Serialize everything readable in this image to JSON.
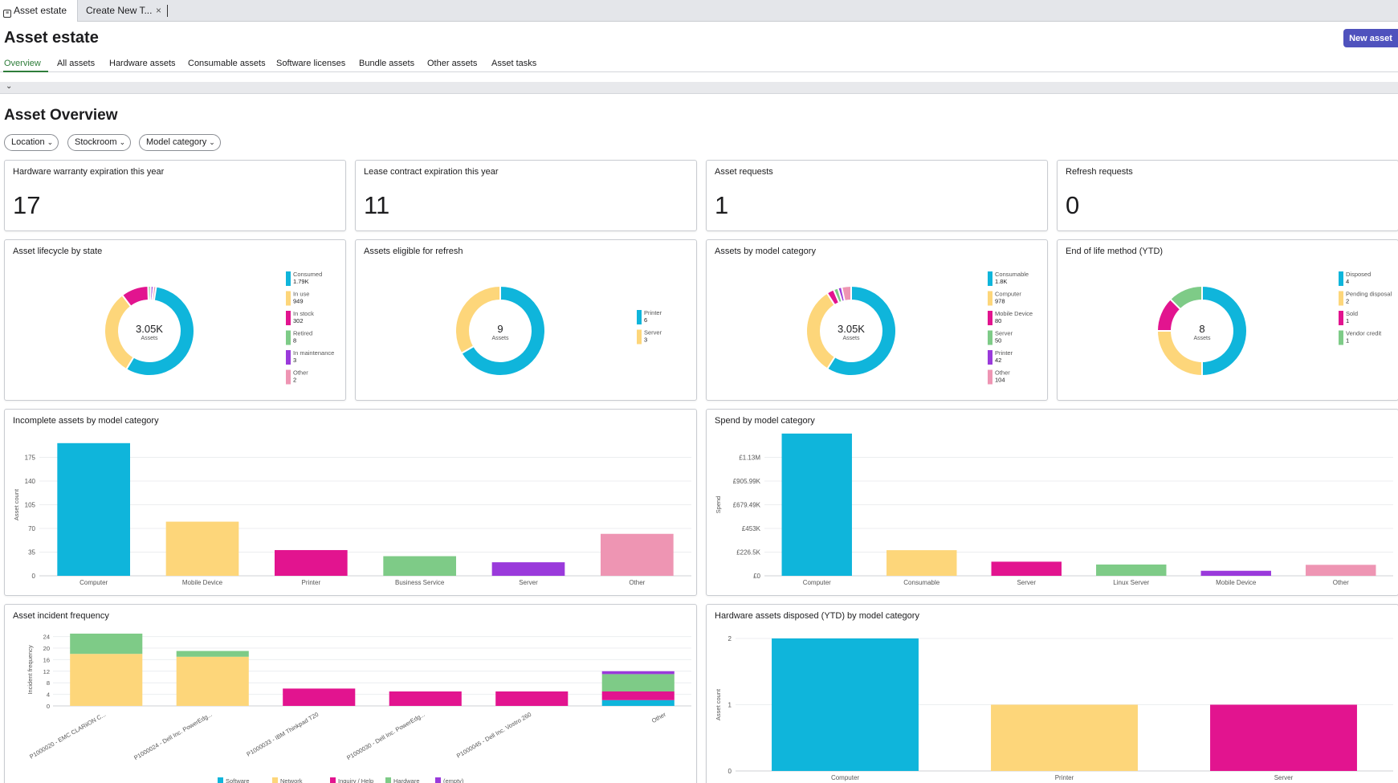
{
  "browser_tabs": [
    {
      "label": "Asset estate",
      "icon": "page-icon"
    },
    {
      "label": "Create New T...",
      "close": "×"
    }
  ],
  "page": {
    "title": "Asset estate",
    "new_asset_label": "New asset"
  },
  "nav_tabs": [
    "Overview",
    "All assets",
    "Hardware assets",
    "Consumable assets",
    "Software licenses",
    "Bundle assets",
    "Other assets",
    "Asset tasks"
  ],
  "active_tab": "Overview",
  "section_title": "Asset Overview",
  "filters": [
    "Location",
    "Stockroom",
    "Model category"
  ],
  "kpis": [
    {
      "label": "Hardware warranty expiration this year",
      "value": "17"
    },
    {
      "label": "Lease contract expiration this year",
      "value": "11"
    },
    {
      "label": "Asset requests",
      "value": "1"
    },
    {
      "label": "Refresh requests",
      "value": "0"
    }
  ],
  "colors": {
    "cyan": "#0fb5db",
    "yellow": "#fdd67a",
    "magenta": "#e2148f",
    "green": "#7ecb87",
    "purple": "#9a3adb",
    "pink": "#ee95b3",
    "accent": "#4f52bd",
    "active_tab": "#2e7d3a"
  },
  "chart_data": [
    {
      "type": "pie",
      "title": "Asset lifecycle by state",
      "center_value": "3.05K",
      "center_label": "Assets",
      "categories": [
        "Consumed",
        "In use",
        "In stock",
        "Retired",
        "In maintenance",
        "Other"
      ],
      "values": [
        1790,
        949,
        302,
        8,
        3,
        2
      ],
      "value_labels": [
        "1.79K",
        "949",
        "302",
        "8",
        "3",
        "2"
      ],
      "colors": [
        "#0fb5db",
        "#fdd67a",
        "#e2148f",
        "#7ecb87",
        "#9a3adb",
        "#ee95b3"
      ],
      "legend": "right"
    },
    {
      "type": "pie",
      "title": "Assets eligible for refresh",
      "center_value": "9",
      "center_label": "Assets",
      "categories": [
        "Printer",
        "Server"
      ],
      "values": [
        6,
        3
      ],
      "value_labels": [
        "6",
        "3"
      ],
      "colors": [
        "#0fb5db",
        "#fdd67a"
      ],
      "legend": "right"
    },
    {
      "type": "pie",
      "title": "Assets by model category",
      "center_value": "3.05K",
      "center_label": "Assets",
      "categories": [
        "Consumable",
        "Computer",
        "Mobile Device",
        "Server",
        "Printer",
        "Other"
      ],
      "values": [
        1800,
        978,
        80,
        50,
        42,
        104
      ],
      "value_labels": [
        "1.8K",
        "978",
        "80",
        "50",
        "42",
        "104"
      ],
      "colors": [
        "#0fb5db",
        "#fdd67a",
        "#e2148f",
        "#7ecb87",
        "#9a3adb",
        "#ee95b3"
      ],
      "legend": "right"
    },
    {
      "type": "pie",
      "title": "End of life method (YTD)",
      "center_value": "8",
      "center_label": "Assets",
      "categories": [
        "Disposed",
        "Pending disposal",
        "Sold",
        "Vendor credit"
      ],
      "values": [
        4,
        2,
        1,
        1
      ],
      "value_labels": [
        "4",
        "2",
        "1",
        "1"
      ],
      "colors": [
        "#0fb5db",
        "#fdd67a",
        "#e2148f",
        "#7ecb87"
      ],
      "legend": "right"
    },
    {
      "type": "bar",
      "title": "Incomplete assets by model category",
      "categories": [
        "Computer",
        "Mobile Device",
        "Printer",
        "Business Service",
        "Server",
        "Other"
      ],
      "values": [
        196,
        80,
        38,
        29,
        20,
        62
      ],
      "colors": [
        "#0fb5db",
        "#fdd67a",
        "#e2148f",
        "#7ecb87",
        "#9a3adb",
        "#ee95b3"
      ],
      "ylabel": "Asset count",
      "yticks": [
        "0",
        "35",
        "70",
        "105",
        "140",
        "175"
      ],
      "ylim": [
        0,
        210
      ],
      "grid": true
    },
    {
      "type": "bar",
      "title": "Spend by model category",
      "categories": [
        "Computer",
        "Consumable",
        "Server",
        "Linux Server",
        "Mobile Device",
        "Other"
      ],
      "values": [
        1360000,
        245000,
        135000,
        108000,
        48000,
        105000
      ],
      "colors": [
        "#0fb5db",
        "#fdd67a",
        "#e2148f",
        "#7ecb87",
        "#9a3adb",
        "#ee95b3"
      ],
      "ylabel": "Spend",
      "yticks": [
        "£0",
        "£226.5K",
        "£453K",
        "£679.49K",
        "£905.99K",
        "£1.13M"
      ],
      "ylim": [
        0,
        1359000
      ],
      "grid": true
    },
    {
      "type": "bar",
      "stacked": true,
      "title": "Asset incident frequency",
      "categories": [
        "P1000020 - EMC CLARiiON C...",
        "P1000024 - Dell Inc. PowerEdg...",
        "P1000033 - IBM Thinkpad T20",
        "P1000030 - Dell Inc. PowerEdg...",
        "P1000045 - Dell Inc. Vostro 260",
        "Other"
      ],
      "series": [
        {
          "name": "Software",
          "color": "#0fb5db",
          "values": [
            0,
            0,
            0,
            0,
            0,
            2
          ]
        },
        {
          "name": "Network",
          "color": "#fdd67a",
          "values": [
            18,
            17,
            0,
            0,
            0,
            0
          ]
        },
        {
          "name": "Inquiry / Help",
          "color": "#e2148f",
          "values": [
            0,
            0,
            6,
            5,
            5,
            3
          ]
        },
        {
          "name": "Hardware",
          "color": "#7ecb87",
          "values": [
            7,
            2,
            0,
            0,
            0,
            6
          ]
        },
        {
          "name": "(empty)",
          "color": "#9a3adb",
          "values": [
            0,
            0,
            0,
            0,
            0,
            1
          ]
        }
      ],
      "ylabel": "Incident frequency",
      "yticks": [
        "0",
        "4",
        "8",
        "12",
        "16",
        "20",
        "24"
      ],
      "ylim": [
        0,
        25
      ],
      "legend": "bottom",
      "grid": true
    },
    {
      "type": "bar",
      "title": "Hardware assets disposed (YTD) by model category",
      "categories": [
        "Computer",
        "Printer",
        "Server"
      ],
      "values": [
        2,
        1,
        1
      ],
      "colors": [
        "#0fb5db",
        "#fdd67a",
        "#e2148f"
      ],
      "ylabel": "Asset count",
      "yticks": [
        "0",
        "1",
        "2"
      ],
      "ylim": [
        0,
        2
      ],
      "grid": true
    }
  ]
}
